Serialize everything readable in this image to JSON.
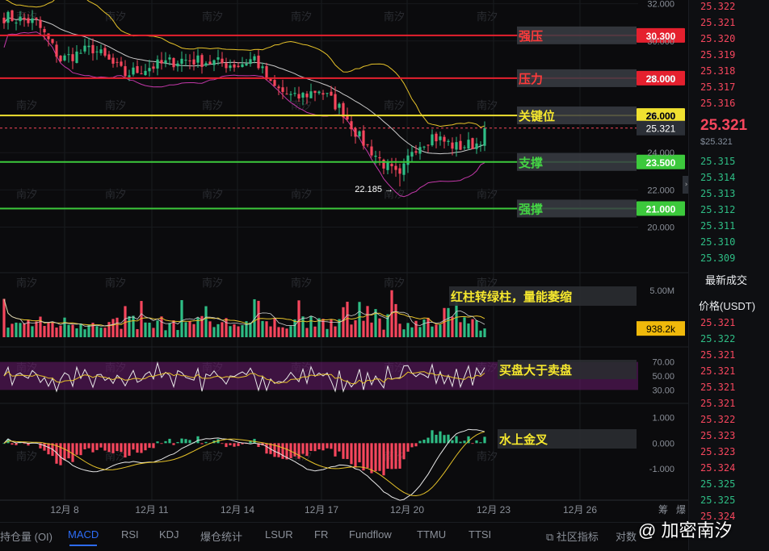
{
  "chart_data": [
    {
      "type": "candlestick",
      "panel": "price",
      "x_ticks": [
        "12月 8",
        "12月 11",
        "12月 14",
        "12月 17",
        "12月 20",
        "12月 23",
        "12月 26"
      ],
      "y_ticks": [
        "32.000",
        "30.000",
        "28.000",
        "26.000",
        "24.000",
        "22.000",
        "20.000"
      ],
      "ylim": [
        19.2,
        32.2
      ],
      "levels": [
        {
          "label": "强压",
          "value": 30.3,
          "value_text": "30.300",
          "color": "#e5202e"
        },
        {
          "label": "压力",
          "value": 28.0,
          "value_text": "28.000",
          "color": "#e5202e"
        },
        {
          "label": "关键位",
          "value": 26.0,
          "value_text": "26.000",
          "color": "#f0e130"
        },
        {
          "label": "支撑",
          "value": 23.5,
          "value_text": "23.500",
          "color": "#3cc93c"
        },
        {
          "label": "强撑",
          "value": 21.0,
          "value_text": "21.000",
          "color": "#3cc93c"
        }
      ],
      "current_price": 25.321,
      "current_price_text": "25.321",
      "low_annotation": "22.185",
      "low_value": 22.185,
      "bollinger_bands": true,
      "candle_count": 120,
      "up_color": "#2ebd85",
      "down_color": "#f6465d"
    },
    {
      "type": "bar",
      "panel": "volume",
      "annotation": "红柱转绿柱，量能萎缩",
      "y_ticks": [
        "5.00M"
      ],
      "ylim": [
        0,
        6.3
      ],
      "current_value_text": "938.2k",
      "current_value": 0.9382,
      "unit": "M"
    },
    {
      "type": "line",
      "panel": "rsi",
      "name": "RSI",
      "annotation": "买盘大于卖盘",
      "y_ticks": [
        "70.00",
        "50.00",
        "30.00"
      ],
      "ylim": [
        20,
        80
      ],
      "band": [
        30,
        70
      ],
      "last_value": 62
    },
    {
      "type": "bar",
      "panel": "macd",
      "name": "MACD",
      "annotation": "水上金叉",
      "y_ticks": [
        "1.000",
        "0.000",
        "-1.000"
      ],
      "ylim": [
        -1.6,
        1.4
      ],
      "last_histogram": 0.25
    }
  ],
  "price_axis_tag": "25.321",
  "orderbook": {
    "sells": [
      "25.322",
      "25.321",
      "25.320",
      "25.319",
      "25.318",
      "25.317",
      "25.316"
    ],
    "last_price": "25.321",
    "last_price_usd": "$25.321",
    "buys": [
      "25.315",
      "25.314",
      "25.313",
      "25.312",
      "25.311",
      "25.310",
      "25.309"
    ],
    "latest_trades_title": "最新成交",
    "price_header": "价格(USDT)",
    "trade_prices": [
      "25.321",
      "25.322",
      "25.321",
      "25.321",
      "25.321",
      "25.321",
      "25.322",
      "25.323",
      "25.323",
      "25.324",
      "25.325",
      "25.325",
      "25.324"
    ],
    "trade_sides": [
      "sell",
      "buy",
      "sell",
      "sell",
      "sell",
      "sell",
      "sell",
      "sell",
      "sell",
      "sell",
      "buy",
      "buy",
      "sell"
    ]
  },
  "tabs": {
    "items": [
      "持仓量 (OI)",
      "MACD",
      "RSI",
      "KDJ",
      "爆仓统计",
      "LSUR",
      "FR",
      "Fundflow",
      "TTMU",
      "TTSI"
    ],
    "active": "MACD",
    "community": "社区指标",
    "compare": "对数"
  },
  "corner_labels": [
    "筹",
    "爆"
  ],
  "watermark_text": "南汐",
  "brand": "@ 加密南汐",
  "colors": {
    "up": "#2ebd85",
    "down": "#f6465d",
    "accent": "#2d6cf6",
    "rsi_band": "#6a1b6e",
    "ma_yellow": "#e6c229",
    "bb_magenta": "#c238a8"
  }
}
